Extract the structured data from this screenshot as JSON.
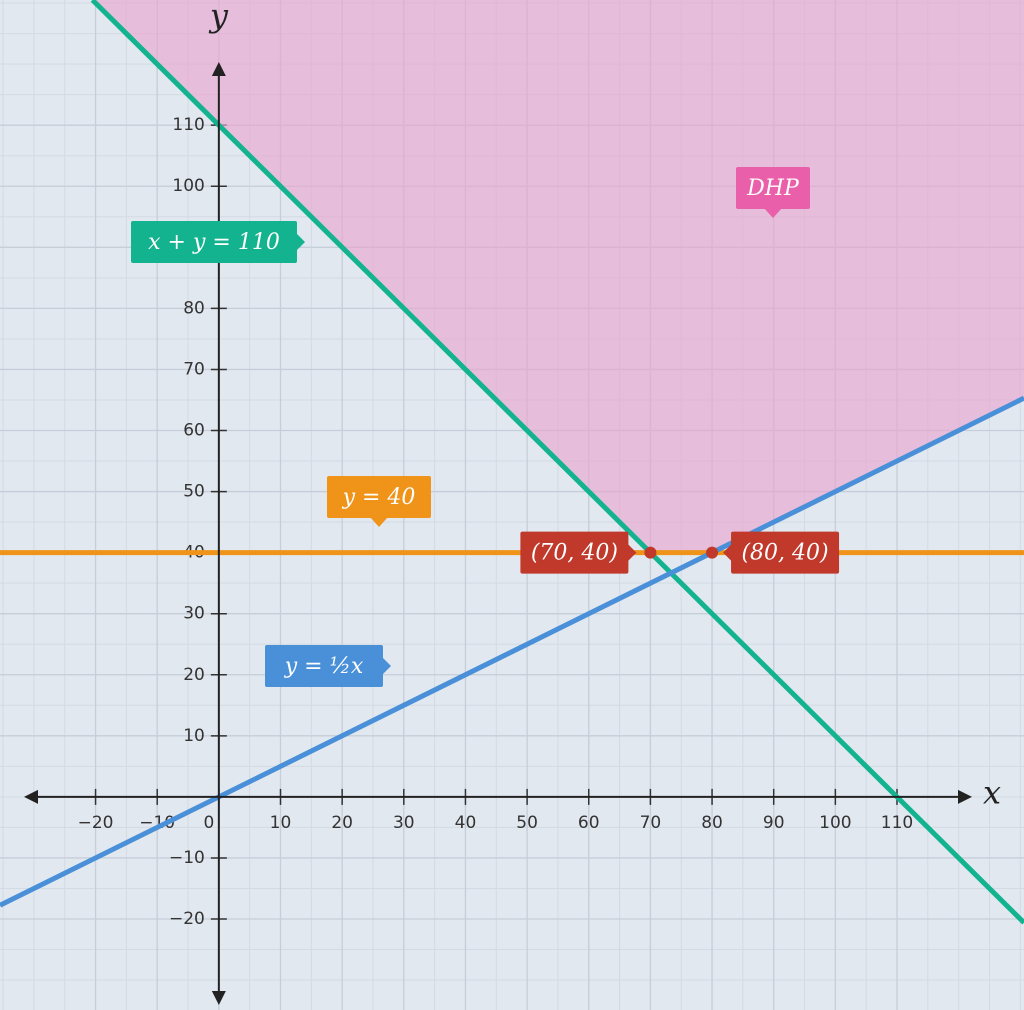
{
  "chart_data": {
    "type": "line",
    "x_label": "x",
    "y_label": "y",
    "xlim": [
      -35.5,
      130.6
    ],
    "ylim": [
      -34.9,
      130.5
    ],
    "xticks": [
      {
        "value": -20,
        "label": "−20"
      },
      {
        "value": -10,
        "label": "−10"
      },
      0,
      10,
      20,
      30,
      40,
      50,
      60,
      70,
      80,
      90,
      100,
      110
    ],
    "yticks": [
      {
        "value": -20,
        "label": "−20"
      },
      {
        "value": -10,
        "label": "−10"
      },
      10,
      20,
      30,
      40,
      50,
      60,
      70,
      80,
      90,
      100,
      110
    ],
    "grid": true,
    "region": {
      "name": "DHP",
      "color": "#e8a6cf",
      "x": [
        70,
        80,
        130.6,
        130.6,
        -20.5
      ],
      "y": [
        40,
        40,
        65.3,
        130.5,
        130.5
      ]
    },
    "series": [
      {
        "name": "x + y = 110",
        "color": "#13b38f",
        "x": [
          -20.5,
          130.6
        ],
        "values": [
          130.5,
          -20.6
        ]
      },
      {
        "name": "y = 40",
        "color": "#ef9319",
        "x": [
          -35.5,
          130.6
        ],
        "values": [
          40,
          40
        ]
      },
      {
        "name": "y = ½x",
        "color": "#4a90d9",
        "x": [
          -35.5,
          130.6
        ],
        "values": [
          -17.75,
          65.3
        ]
      }
    ],
    "points": [
      {
        "label": "(70, 40)",
        "x": 70,
        "y": 40,
        "color": "#c0392b"
      },
      {
        "label": "(80, 40)",
        "x": 80,
        "y": 40,
        "color": "#c0392b"
      }
    ]
  }
}
